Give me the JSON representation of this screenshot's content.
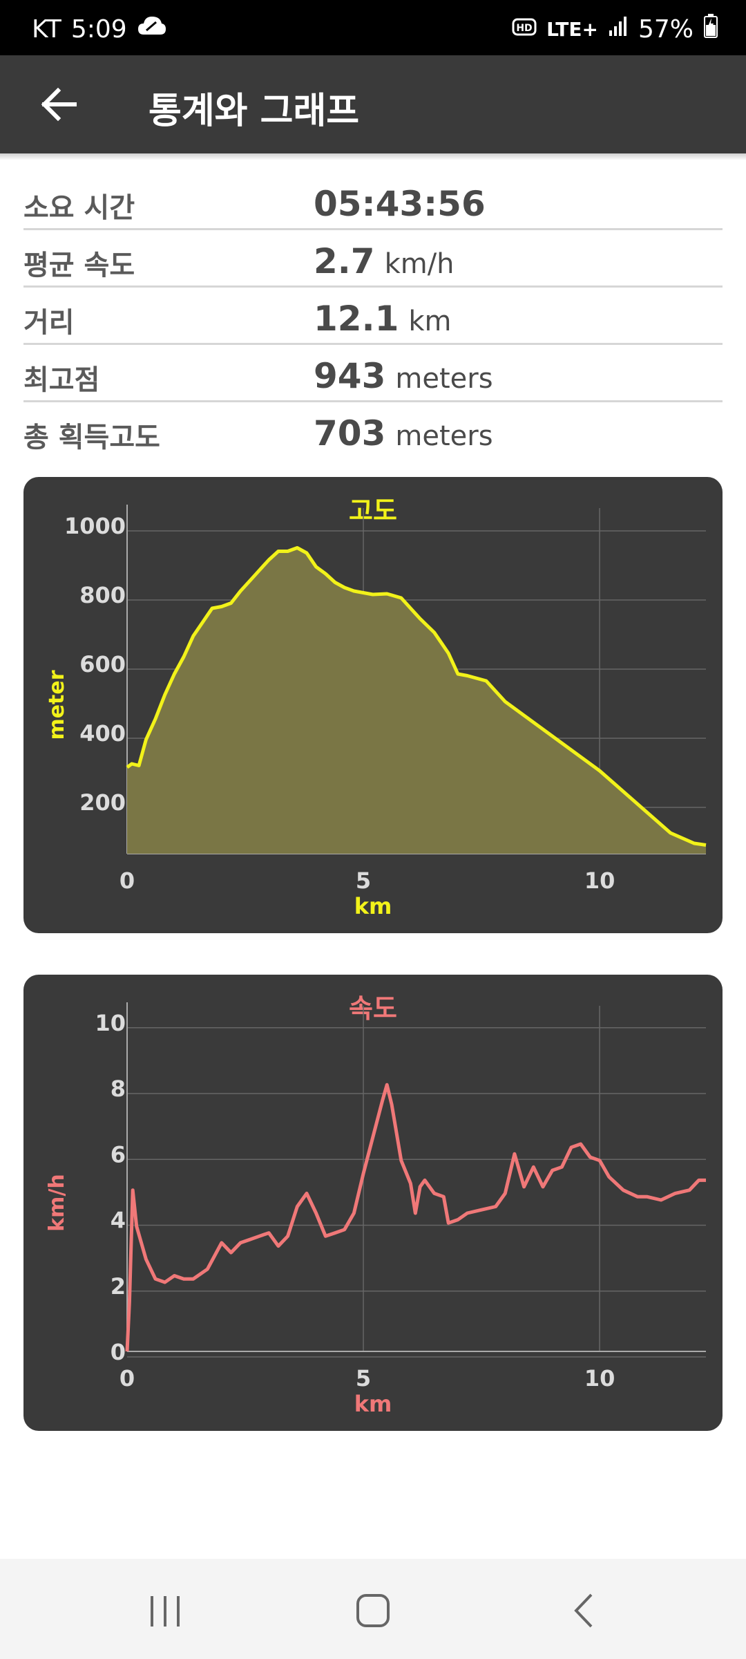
{
  "status_bar": {
    "carrier": "KT",
    "time": "5:09",
    "network": "LTE+",
    "battery": "57%"
  },
  "app_bar": {
    "title": "통계와 그래프",
    "back_icon": "arrow-left-icon"
  },
  "stats": [
    {
      "label": "소요 시간",
      "value": "05:43:56",
      "unit": ""
    },
    {
      "label": "평균 속도",
      "value": "2.7",
      "unit": "km/h"
    },
    {
      "label": "거리",
      "value": "12.1",
      "unit": "km"
    },
    {
      "label": "최고점",
      "value": "943",
      "unit": "meters"
    },
    {
      "label": "총 획득고도",
      "value": "703",
      "unit": "meters"
    }
  ],
  "chart_data": [
    {
      "type": "area",
      "title": "고도",
      "xlabel": "km",
      "ylabel": "meter",
      "color": "#f2f21a",
      "fill": "#7a7645",
      "xlim": [
        0,
        12.25
      ],
      "ylim": [
        50,
        1050
      ],
      "xticks": [
        "0",
        "5",
        "10"
      ],
      "yticks": [
        "200",
        "400",
        "600",
        "800",
        "1000"
      ],
      "x": [
        0,
        0.1,
        0.25,
        0.4,
        0.6,
        0.8,
        1.0,
        1.2,
        1.4,
        1.6,
        1.8,
        2.0,
        2.2,
        2.4,
        2.6,
        2.8,
        3.0,
        3.2,
        3.4,
        3.6,
        3.8,
        4.0,
        4.2,
        4.4,
        4.6,
        4.8,
        5.0,
        5.2,
        5.5,
        5.8,
        6.0,
        6.2,
        6.5,
        6.8,
        7.0,
        7.2,
        7.6,
        7.8,
        8.0,
        8.5,
        9.0,
        9.5,
        10.0,
        10.5,
        11.0,
        11.5,
        12.0,
        12.25
      ],
      "y": [
        300,
        310,
        305,
        380,
        440,
        510,
        570,
        620,
        680,
        720,
        760,
        765,
        775,
        810,
        840,
        870,
        900,
        925,
        925,
        935,
        920,
        880,
        860,
        835,
        820,
        810,
        805,
        800,
        802,
        790,
        760,
        730,
        690,
        630,
        570,
        565,
        550,
        520,
        490,
        440,
        390,
        340,
        290,
        230,
        170,
        110,
        80,
        75
      ]
    },
    {
      "type": "line",
      "title": "속도",
      "xlabel": "km",
      "ylabel": "km/h",
      "color": "#f07878",
      "xlim": [
        0,
        12.25
      ],
      "ylim": [
        0,
        10.5
      ],
      "xticks": [
        "0",
        "5",
        "10"
      ],
      "yticks": [
        "0",
        "2",
        "4",
        "6",
        "8",
        "10"
      ],
      "x": [
        0,
        0.05,
        0.12,
        0.2,
        0.4,
        0.6,
        0.8,
        1.0,
        1.2,
        1.4,
        1.7,
        2.0,
        2.2,
        2.4,
        2.6,
        2.8,
        3.0,
        3.2,
        3.4,
        3.6,
        3.8,
        4.0,
        4.2,
        4.4,
        4.6,
        4.8,
        5.0,
        5.2,
        5.4,
        5.5,
        5.6,
        5.8,
        6.0,
        6.1,
        6.2,
        6.3,
        6.5,
        6.7,
        6.8,
        7.0,
        7.2,
        7.5,
        7.8,
        8.0,
        8.2,
        8.4,
        8.6,
        8.8,
        9.0,
        9.2,
        9.4,
        9.6,
        9.8,
        10.0,
        10.2,
        10.5,
        10.8,
        11.0,
        11.3,
        11.6,
        11.9,
        12.1,
        12.25
      ],
      "y": [
        0,
        1.5,
        4.9,
        3.8,
        2.8,
        2.2,
        2.1,
        2.3,
        2.2,
        2.2,
        2.5,
        3.3,
        3.0,
        3.3,
        3.4,
        3.5,
        3.6,
        3.2,
        3.5,
        4.4,
        4.8,
        4.2,
        3.5,
        3.6,
        3.7,
        4.2,
        5.4,
        6.5,
        7.6,
        8.1,
        7.5,
        5.8,
        5.1,
        4.2,
        5.0,
        5.2,
        4.8,
        4.7,
        3.9,
        4.0,
        4.2,
        4.3,
        4.4,
        4.8,
        6.0,
        5.0,
        5.6,
        5.0,
        5.5,
        5.6,
        6.2,
        6.3,
        5.9,
        5.8,
        5.3,
        4.9,
        4.7,
        4.7,
        4.6,
        4.8,
        4.9,
        5.2,
        5.2
      ]
    }
  ]
}
